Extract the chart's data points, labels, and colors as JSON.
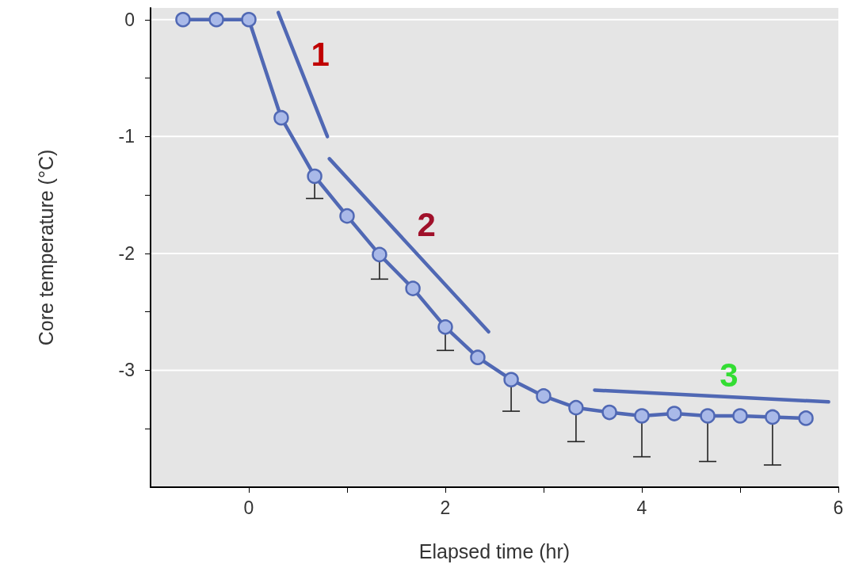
{
  "chart_data": {
    "type": "line",
    "xlabel": "Elapsed time (hr)",
    "ylabel": "Core temperature (°C)",
    "xlim": [
      -1,
      6
    ],
    "ylim": [
      -4,
      0.1
    ],
    "xticks": [
      0,
      {
        "value": 1,
        "label": null
      },
      2,
      {
        "value": 3,
        "label": null
      },
      4,
      {
        "value": 5,
        "label": null
      },
      6
    ],
    "yticks": [
      {
        "value": -3.5,
        "label": null
      },
      -3,
      {
        "value": -2.5,
        "label": null
      },
      -2,
      {
        "value": -1.5,
        "label": null
      },
      -1,
      {
        "value": -0.5,
        "label": null
      },
      0
    ],
    "grid": "y",
    "legend": false,
    "marker": "circle",
    "line_style": "solid",
    "series": [
      {
        "color": "#5068b4",
        "x": [
          -0.67,
          -0.33,
          0,
          0.33,
          0.67,
          1,
          1.33,
          1.67,
          2,
          2.33,
          2.67,
          3,
          3.33,
          3.67,
          4,
          4.33,
          4.67,
          5,
          5.33,
          5.67
        ],
        "values": [
          0,
          0,
          0,
          -0.84,
          -1.34,
          -1.68,
          -2.01,
          -2.3,
          -2.63,
          -2.89,
          -3.08,
          -3.22,
          -3.32,
          -3.36,
          -3.39,
          -3.37,
          -3.39,
          -3.39,
          -3.4,
          -3.41
        ],
        "errors": [
          null,
          null,
          null,
          null,
          [
            -1.53,
            -1.34
          ],
          null,
          [
            -2.22,
            -2.01
          ],
          null,
          [
            -2.83,
            -2.63
          ],
          null,
          [
            -3.35,
            -3.08
          ],
          null,
          [
            -3.61,
            -3.32
          ],
          null,
          [
            -3.74,
            -3.39
          ],
          null,
          [
            -3.78,
            -3.39
          ],
          null,
          [
            -3.81,
            -3.4
          ],
          null
        ]
      },
      {
        "type": "line",
        "name": "1",
        "color": "#5068b4",
        "marker": "none",
        "x": [
          0.3,
          0.8
        ],
        "values": [
          0.06,
          -1.0
        ]
      },
      {
        "type": "line",
        "name": "2",
        "color": "#5068b4",
        "marker": "none",
        "x": [
          0.82,
          2.44
        ],
        "values": [
          -1.19,
          -2.67
        ]
      },
      {
        "type": "line",
        "name": "3",
        "color": "#5068b4",
        "marker": "none",
        "x": [
          3.52,
          5.9
        ],
        "values": [
          -3.17,
          -3.27
        ]
      }
    ]
  }
}
